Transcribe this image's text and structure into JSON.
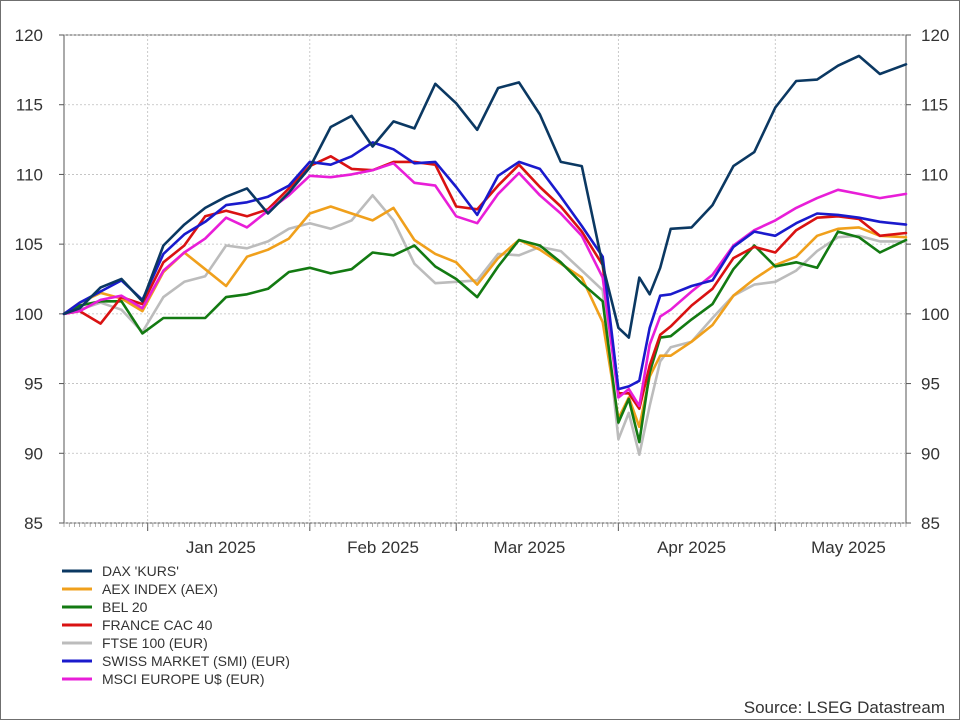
{
  "chart_data": {
    "type": "line",
    "title": "",
    "xlabel": "",
    "ylabel": "",
    "ylim": [
      85,
      120
    ],
    "yticks": [
      85,
      90,
      95,
      100,
      105,
      110,
      115,
      120
    ],
    "x_range": [
      "2024-12-16",
      "2025-05-26"
    ],
    "month_labels": [
      {
        "label": "Jan 2025",
        "date": "2025-01-15"
      },
      {
        "label": "Feb 2025",
        "date": "2025-02-15"
      },
      {
        "label": "Mar 2025",
        "date": "2025-03-15"
      },
      {
        "label": "Apr 2025",
        "date": "2025-04-15"
      },
      {
        "label": "May 2025",
        "date": "2025-05-15"
      }
    ],
    "grid": true,
    "legend_placement": "bottom-left",
    "dates": [
      "2024-12-16",
      "2024-12-19",
      "2024-12-23",
      "2024-12-27",
      "2024-12-31",
      "2025-01-04",
      "2025-01-08",
      "2025-01-12",
      "2025-01-16",
      "2025-01-20",
      "2025-01-24",
      "2025-01-28",
      "2025-02-01",
      "2025-02-05",
      "2025-02-09",
      "2025-02-13",
      "2025-02-17",
      "2025-02-21",
      "2025-02-25",
      "2025-03-01",
      "2025-03-05",
      "2025-03-09",
      "2025-03-13",
      "2025-03-17",
      "2025-03-21",
      "2025-03-25",
      "2025-03-29",
      "2025-04-01",
      "2025-04-03",
      "2025-04-05",
      "2025-04-07",
      "2025-04-09",
      "2025-04-11",
      "2025-04-15",
      "2025-04-19",
      "2025-04-23",
      "2025-04-27",
      "2025-05-01",
      "2025-05-05",
      "2025-05-09",
      "2025-05-13",
      "2025-05-17",
      "2025-05-21",
      "2025-05-26"
    ],
    "series": [
      {
        "name": "DAX 'KURS'",
        "color": "#0b3862",
        "values": [
          100,
          100.4,
          101.9,
          102.5,
          100.9,
          104.9,
          106.4,
          107.6,
          108.4,
          109.0,
          107.2,
          108.7,
          110.5,
          113.4,
          114.2,
          112.0,
          113.8,
          113.3,
          116.5,
          115.1,
          113.2,
          116.2,
          116.6,
          114.3,
          110.9,
          110.6,
          103.5,
          99.0,
          98.3,
          102.6,
          101.4,
          103.3,
          106.1,
          106.2,
          107.8,
          110.6,
          111.6,
          114.8,
          116.7,
          116.8,
          117.8,
          118.5,
          117.2,
          117.9
        ]
      },
      {
        "name": "AEX INDEX (AEX)",
        "color": "#f0a01c",
        "values": [
          100,
          100.8,
          101.5,
          101.1,
          100.2,
          103.0,
          104.4,
          103.2,
          102.0,
          104.1,
          104.6,
          105.4,
          107.2,
          107.7,
          107.2,
          106.7,
          107.6,
          105.3,
          104.3,
          103.7,
          102.1,
          104.0,
          105.3,
          104.6,
          103.6,
          102.6,
          99.4,
          92.5,
          94.0,
          91.9,
          95.5,
          97.0,
          97.0,
          98.0,
          99.2,
          101.3,
          102.5,
          103.5,
          104.1,
          105.6,
          106.1,
          106.2,
          105.6,
          105.5
        ]
      },
      {
        "name": "BEL 20",
        "color": "#137a12",
        "values": [
          100,
          100.6,
          100.9,
          100.9,
          98.6,
          99.7,
          99.7,
          99.7,
          101.2,
          101.4,
          101.8,
          103.0,
          103.3,
          102.9,
          103.2,
          104.4,
          104.2,
          104.9,
          103.4,
          102.5,
          101.2,
          103.4,
          105.3,
          104.9,
          103.7,
          102.2,
          100.9,
          92.2,
          93.9,
          90.8,
          95.8,
          98.3,
          98.4,
          99.6,
          100.7,
          103.2,
          104.9,
          103.4,
          103.7,
          103.3,
          105.9,
          105.5,
          104.4,
          105.3
        ]
      },
      {
        "name": "FRANCE CAC 40",
        "color": "#d91212",
        "values": [
          100,
          100.2,
          99.3,
          101.2,
          100.7,
          103.7,
          104.9,
          107.0,
          107.4,
          107.0,
          107.5,
          109.0,
          110.6,
          111.3,
          110.4,
          110.3,
          110.9,
          110.9,
          110.7,
          107.7,
          107.5,
          109.2,
          110.7,
          109.1,
          107.7,
          105.9,
          103.5,
          94.3,
          94.3,
          93.2,
          96.3,
          98.5,
          99.1,
          100.6,
          101.8,
          104.0,
          104.8,
          104.4,
          106.0,
          106.9,
          107.0,
          106.8,
          105.6,
          105.8
        ]
      },
      {
        "name": "FTSE 100 (EUR)",
        "color": "#bcbcbc",
        "values": [
          100,
          100.3,
          100.8,
          100.3,
          98.7,
          101.2,
          102.3,
          102.7,
          104.9,
          104.7,
          105.2,
          106.1,
          106.5,
          106.1,
          106.7,
          108.5,
          106.7,
          103.6,
          102.2,
          102.3,
          102.4,
          104.3,
          104.2,
          104.8,
          104.5,
          103.1,
          101.7,
          91.0,
          92.9,
          89.9,
          93.4,
          96.6,
          97.6,
          98.0,
          99.7,
          101.3,
          102.1,
          102.3,
          103.1,
          104.5,
          105.5,
          105.6,
          105.2,
          105.2
        ]
      },
      {
        "name": "SWISS MARKET (SMI) (EUR)",
        "color": "#1a1acc",
        "values": [
          100,
          100.8,
          101.6,
          102.4,
          101.0,
          104.3,
          105.7,
          106.6,
          107.8,
          108.0,
          108.4,
          109.2,
          110.9,
          110.7,
          111.3,
          112.3,
          111.8,
          110.8,
          110.9,
          109.1,
          107.1,
          109.9,
          110.9,
          110.4,
          108.4,
          106.3,
          104.1,
          94.6,
          94.8,
          95.2,
          99.0,
          101.3,
          101.4,
          102.0,
          102.4,
          104.8,
          105.9,
          105.6,
          106.5,
          107.2,
          107.1,
          106.9,
          106.6,
          106.4
        ]
      },
      {
        "name": "MSCI EUROPE U$ (EUR)",
        "color": "#e81ed8",
        "values": [
          100,
          100.2,
          101.0,
          101.3,
          100.4,
          103.1,
          104.4,
          105.4,
          106.9,
          106.2,
          107.4,
          108.5,
          109.9,
          109.8,
          110.0,
          110.3,
          110.8,
          109.4,
          109.2,
          107.0,
          106.5,
          108.6,
          110.1,
          108.5,
          107.2,
          105.6,
          102.6,
          94.0,
          94.6,
          93.4,
          97.8,
          99.8,
          100.3,
          101.6,
          102.8,
          104.9,
          106.0,
          106.7,
          107.6,
          108.3,
          108.9,
          108.6,
          108.3,
          108.6
        ]
      }
    ]
  },
  "source_text": "Source: LSEG Datastream"
}
